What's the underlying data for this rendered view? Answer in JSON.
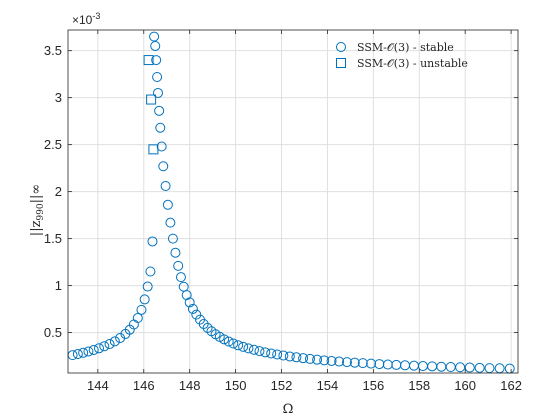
{
  "chart_data": {
    "type": "scatter",
    "xlabel": "Ω",
    "ylabel": "||z_990||_∞",
    "ylabel_main": "||z",
    "ylabel_sub": "990",
    "ylabel_tail": "||∞",
    "y_exponent_label": "×10",
    "y_exponent_value": "-3",
    "xlim": [
      142.7,
      162.3
    ],
    "ylim": [
      7e-05,
      0.00372
    ],
    "x_ticks": [
      144,
      146,
      148,
      150,
      152,
      154,
      156,
      158,
      160,
      162
    ],
    "y_ticks": [
      0.0005,
      0.001,
      0.0015,
      0.002,
      0.0025,
      0.003,
      0.0035
    ],
    "y_tick_labels": [
      "0.5",
      "1",
      "1.5",
      "2",
      "2.5",
      "3",
      "3.5"
    ],
    "grid": true,
    "legend_position": "top-right",
    "series_color": "#0072BD",
    "series": [
      {
        "name": "SSM-𝒪(3) - stable",
        "marker": "circle",
        "x": [
          142.9,
          143.13,
          143.36,
          143.59,
          143.82,
          144.05,
          144.28,
          144.51,
          144.74,
          144.97,
          145.2,
          145.39,
          145.57,
          145.74,
          145.9,
          146.04,
          146.17,
          146.29,
          146.38,
          146.45,
          146.5,
          146.54,
          146.58,
          146.62,
          146.67,
          146.72,
          146.78,
          146.85,
          146.95,
          147.05,
          147.16,
          147.27,
          147.38,
          147.5,
          147.62,
          147.74,
          147.87,
          148.0,
          148.14,
          148.29,
          148.45,
          148.61,
          148.78,
          148.95,
          149.13,
          149.31,
          149.5,
          149.7,
          149.9,
          150.11,
          150.33,
          150.56,
          150.8,
          151.04,
          151.29,
          151.55,
          151.81,
          152.08,
          152.36,
          152.65,
          152.94,
          153.24,
          153.55,
          153.86,
          154.18,
          154.51,
          154.85,
          155.19,
          155.54,
          155.9,
          156.26,
          156.63,
          157.0,
          157.38,
          157.77,
          158.16,
          158.56,
          158.96,
          159.37,
          159.78,
          160.2,
          160.63,
          161.06,
          161.5,
          161.94
        ],
        "y": [
          0.00026,
          0.000272,
          0.000285,
          0.000299,
          0.000315,
          0.000333,
          0.000354,
          0.000378,
          0.000407,
          0.000442,
          0.000486,
          0.000531,
          0.000586,
          0.000655,
          0.000742,
          0.000853,
          0.00099,
          0.00115,
          0.00147,
          0.00365,
          0.00355,
          0.0034,
          0.00322,
          0.00305,
          0.00286,
          0.00268,
          0.00248,
          0.00227,
          0.00206,
          0.00186,
          0.00167,
          0.0015,
          0.00135,
          0.00121,
          0.00109,
          0.000988,
          0.000899,
          0.000821,
          0.000752,
          0.000691,
          0.000638,
          0.000591,
          0.00055,
          0.000514,
          0.000482,
          0.000454,
          0.000428,
          0.000405,
          0.000384,
          0.000365,
          0.000348,
          0.000332,
          0.000317,
          0.000303,
          0.00029,
          0.000278,
          0.000267,
          0.000256,
          0.000246,
          0.000237,
          0.000228,
          0.00022,
          0.000212,
          0.000205,
          0.000198,
          0.000192,
          0.000186,
          0.00018,
          0.000175,
          0.00017,
          0.000165,
          0.00016,
          0.000156,
          0.000152,
          0.000148,
          0.000144,
          0.000141,
          0.000137,
          0.000134,
          0.000131,
          0.000128,
          0.000125,
          0.000122,
          0.00012,
          0.000117
        ]
      },
      {
        "name": "SSM-𝒪(3) - unstable",
        "marker": "square",
        "x": [
          146.21,
          146.32,
          146.42
        ],
        "y": [
          0.0034,
          0.00298,
          0.00245
        ]
      }
    ]
  }
}
